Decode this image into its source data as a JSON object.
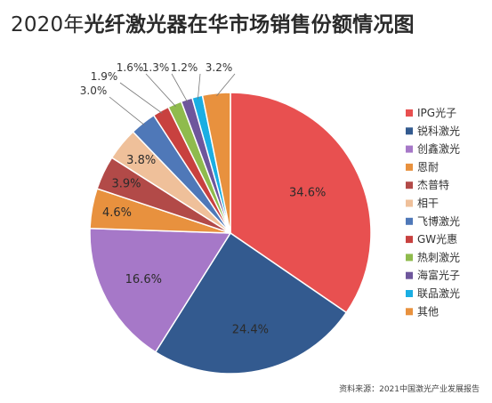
{
  "title": {
    "year": "2020年",
    "main": "光纤激光器在华市场销售份额情况图"
  },
  "source": "资料来源：2021中国激光产业发展报告",
  "chart_data": {
    "type": "pie",
    "title": "2020年光纤激光器在华市场销售份额情况图",
    "unit": "%",
    "legend_position": "right",
    "start": "12 o'clock, clockwise",
    "slices": [
      {
        "name": "IPG光子",
        "value": 34.6,
        "label": "34.6%",
        "color": "#e85050"
      },
      {
        "name": "锐科激光",
        "value": 24.4,
        "label": "24.4%",
        "color": "#335a8f"
      },
      {
        "name": "创鑫激光",
        "value": 16.6,
        "label": "16.6%",
        "color": "#a678c8"
      },
      {
        "name": "恩耐",
        "value": 4.6,
        "label": "4.6%",
        "color": "#e8913e"
      },
      {
        "name": "杰普特",
        "value": 3.9,
        "label": "3.9%",
        "color": "#b24a48"
      },
      {
        "name": "相干",
        "value": 3.8,
        "label": "3.8%",
        "color": "#efc09a"
      },
      {
        "name": "飞博激光",
        "value": 3.0,
        "label": "3.0%",
        "color": "#4f78b8"
      },
      {
        "name": "GW光惠",
        "value": 1.9,
        "label": "1.9%",
        "color": "#c8413f"
      },
      {
        "name": "热刺激光",
        "value": 1.6,
        "label": "1.6%",
        "color": "#8fbb4d"
      },
      {
        "name": "海富光子",
        "value": 1.3,
        "label": "1.3%",
        "color": "#6e569c"
      },
      {
        "name": "联品激光",
        "value": 1.2,
        "label": "1.2%",
        "color": "#1aaee3"
      },
      {
        "name": "其他",
        "value": 3.2,
        "label": "3.2%",
        "color": "#e8913e"
      }
    ]
  }
}
